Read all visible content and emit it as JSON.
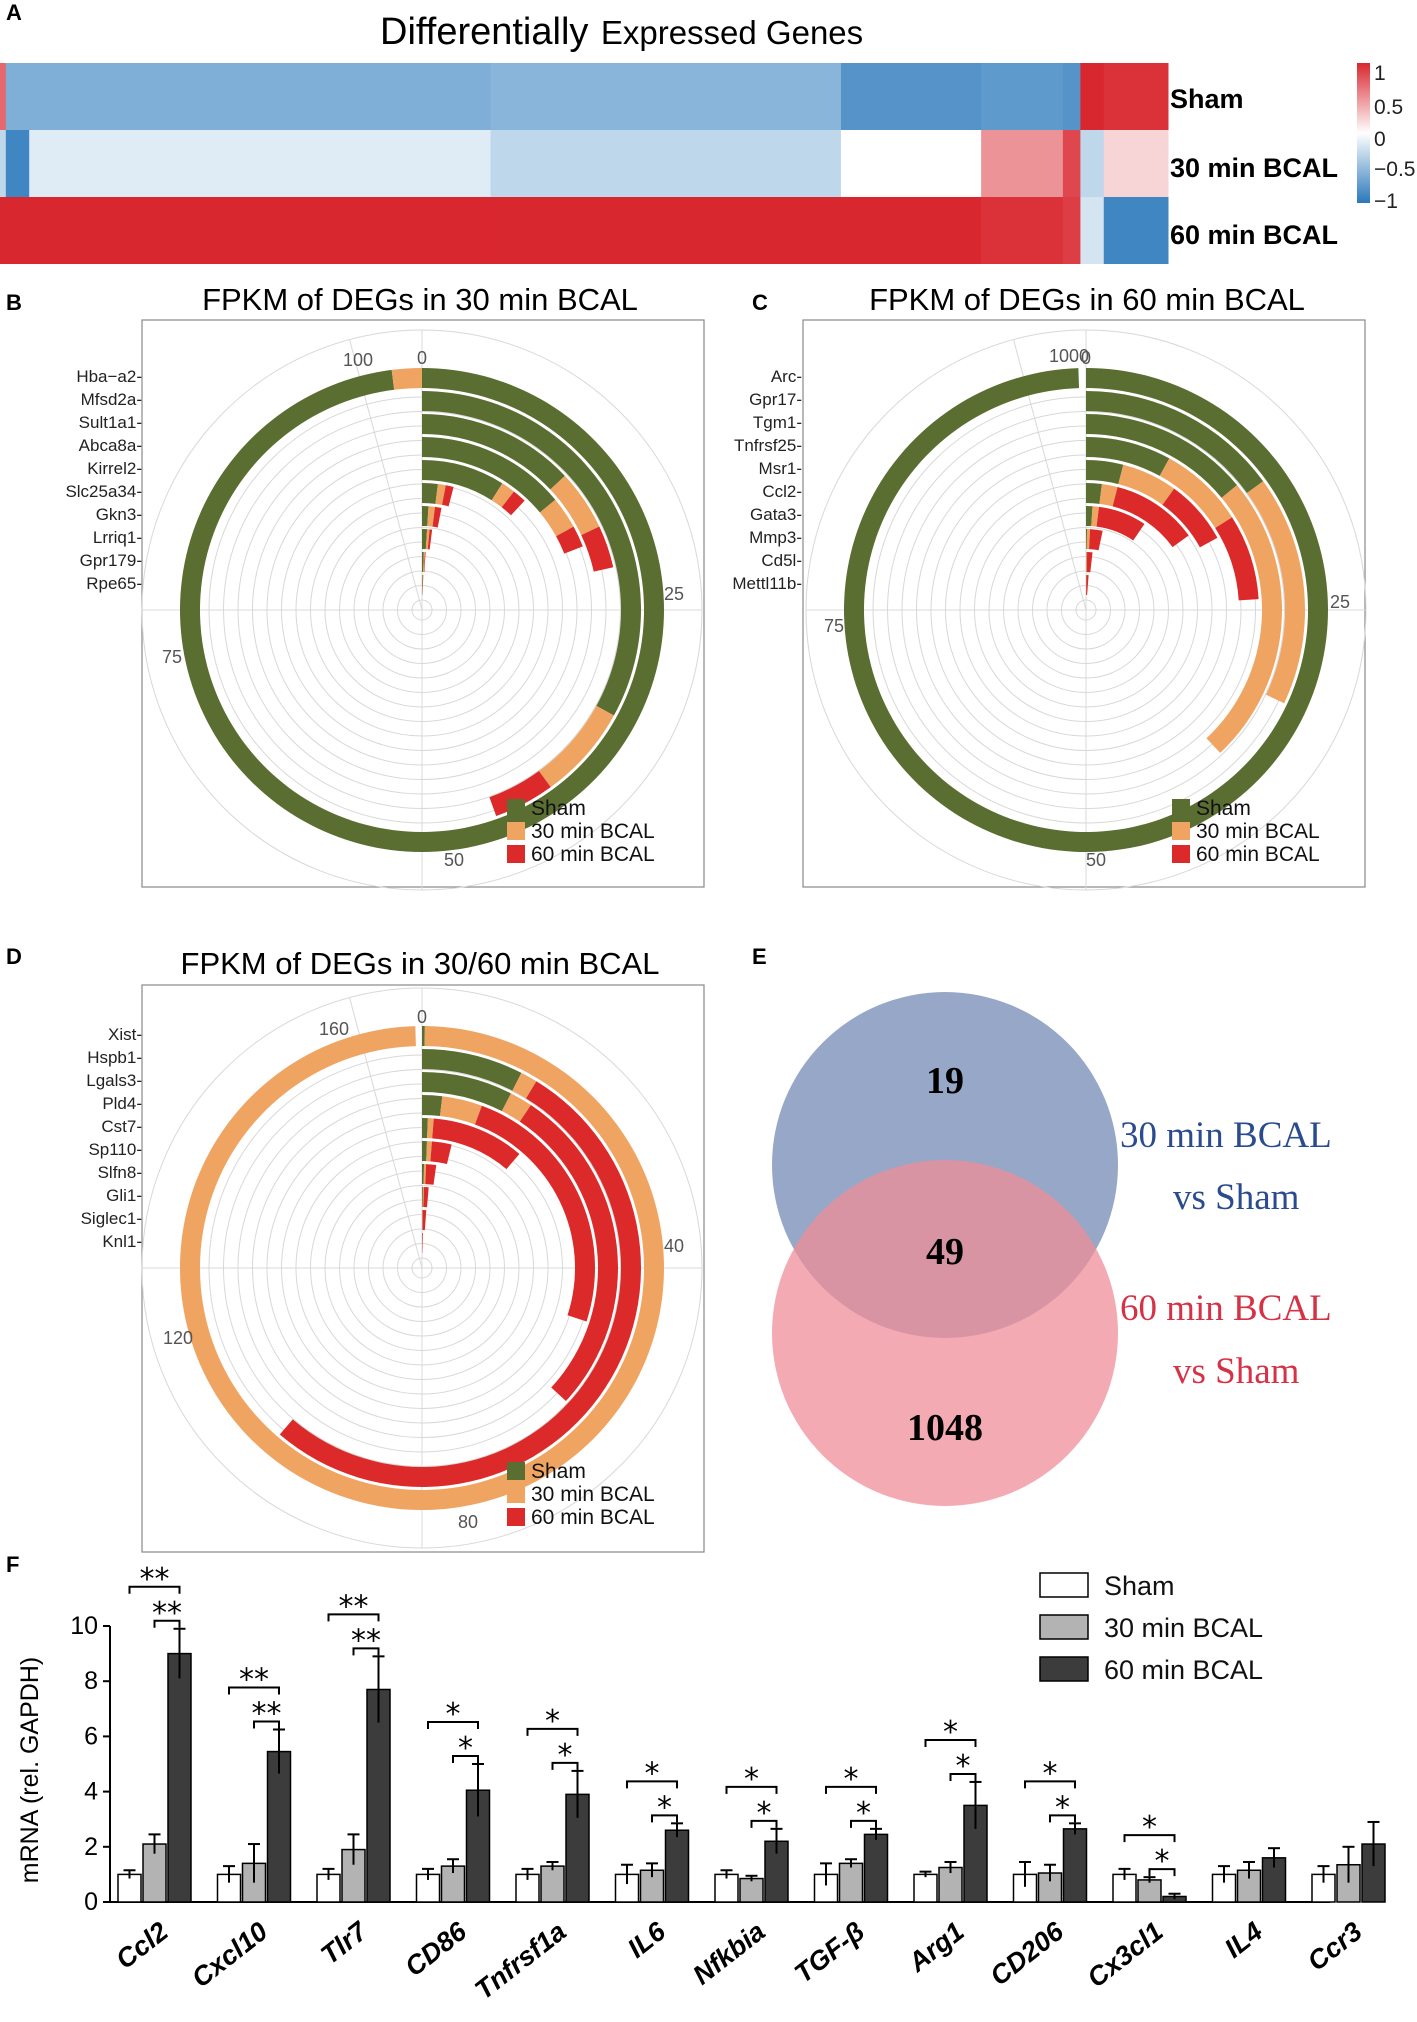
{
  "panel_letters": {
    "a": "A",
    "b": "B",
    "c": "C",
    "d": "D",
    "e": "E",
    "f": "F"
  },
  "colors": {
    "sham": "#5a6e31",
    "bcal30": "#f0a462",
    "bcal60": "#dc2a2a",
    "hm_red": "#d9272f",
    "hm_blue": "#2a78bb",
    "venn_blue": "#7389b5",
    "venn_red": "#ef8d98",
    "venn_blue_text": "#2a4b8d",
    "venn_red_text": "#d63245",
    "bar_sham": "#ffffff",
    "bar_30": "#b3b3b3",
    "bar_60": "#3c3c3c"
  },
  "chart_data": [
    {
      "type": "heatmap",
      "panel": "A",
      "title_big": "Differentially",
      "title_small": "Expressed Genes",
      "rows": [
        "Sham",
        "30 min BCAL",
        "60 min BCAL"
      ],
      "scale": {
        "min": -1,
        "max": 1,
        "ticks": [
          "1",
          "0.5",
          "0",
          "−0.5",
          "−1"
        ]
      },
      "segments": [
        {
          "from": 0.0,
          "to": 0.005,
          "values": [
            0.7,
            -0.3,
            1.0
          ]
        },
        {
          "from": 0.005,
          "to": 0.025,
          "values": [
            -0.6,
            -0.9,
            1.0
          ]
        },
        {
          "from": 0.025,
          "to": 0.42,
          "values": [
            -0.6,
            -0.15,
            1.0
          ]
        },
        {
          "from": 0.42,
          "to": 0.72,
          "values": [
            -0.55,
            -0.3,
            1.0
          ]
        },
        {
          "from": 0.72,
          "to": 0.84,
          "values": [
            -0.8,
            0.0,
            1.0
          ]
        },
        {
          "from": 0.84,
          "to": 0.91,
          "values": [
            -0.75,
            0.5,
            0.95
          ]
        },
        {
          "from": 0.91,
          "to": 0.925,
          "values": [
            -0.8,
            0.85,
            0.9
          ]
        },
        {
          "from": 0.925,
          "to": 0.945,
          "values": [
            1.0,
            -0.3,
            -0.2
          ]
        },
        {
          "from": 0.945,
          "to": 1.0,
          "values": [
            0.95,
            0.2,
            -0.9
          ]
        }
      ]
    },
    {
      "type": "radial-bar",
      "panel": "B",
      "title": "FPKM of DEGs in 30 min BCAL",
      "max": 100,
      "ticks": [
        0,
        25,
        50,
        75,
        100
      ],
      "genes": [
        "Hba−a2",
        "Mfsd2a",
        "Sult1a1",
        "Abca8a",
        "Kirrel2",
        "Slc25a34",
        "Gkn3",
        "Lrriq1",
        "Gpr179",
        "Rpe65"
      ],
      "series": [
        {
          "name": "Sham",
          "values": [
            98,
            33,
            13,
            14,
            9,
            2,
            1,
            1,
            0.5,
            0.3
          ]
        },
        {
          "name": "30 min BCAL",
          "values": [
            2,
            7,
            5,
            3,
            1.5,
            1,
            1,
            0.5,
            0.3,
            0.2
          ]
        },
        {
          "name": "60 min BCAL",
          "values": [
            0,
            4.5,
            3.5,
            2,
            1.5,
            1,
            1,
            0.5,
            0.2,
            0.1
          ]
        }
      ],
      "legend": [
        "Sham",
        "30 min BCAL",
        "60 min BCAL"
      ]
    },
    {
      "type": "radial-bar",
      "panel": "C",
      "title": "FPKM of DEGs in 60 min BCAL",
      "max": 1000,
      "ticks": [
        0,
        25,
        50,
        75,
        1000
      ],
      "tick_max_pos": 1000,
      "genes": [
        "Arc",
        "Gpr17",
        "Tgm1",
        "Tnfrsf25",
        "Msr1",
        "Ccl2",
        "Gata3",
        "Mmp3",
        "Cd5l",
        "Mettl11b"
      ],
      "series": [
        {
          "name": "Sham",
          "values": [
            995,
            150,
            140,
            80,
            40,
            20,
            10,
            2,
            1,
            1
          ]
        },
        {
          "name": "30 min BCAL",
          "values": [
            0,
            170,
            240,
            80,
            60,
            20,
            10,
            6,
            2,
            1
          ]
        },
        {
          "name": "60 min BCAL",
          "values": [
            0,
            0,
            0,
            80,
            70,
            110,
            75,
            25,
            15,
            10
          ]
        }
      ],
      "legend": [
        "Sham",
        "30 min BCAL",
        "60 min BCAL"
      ]
    },
    {
      "type": "radial-bar",
      "panel": "D",
      "title": "FPKM of DEGs in 30/60 min BCAL",
      "max": 160,
      "ticks": [
        0,
        40,
        80,
        120,
        160
      ],
      "genes": [
        "Xist",
        "Hspb1",
        "Lgals3",
        "Pld4",
        "Cst7",
        "Sp110",
        "Slfn8",
        "Gli1",
        "Siglec1",
        "Knl1"
      ],
      "series": [
        {
          "name": "Sham",
          "values": [
            0.3,
            12,
            12,
            3,
            1,
            1,
            0.5,
            0.3,
            0.2,
            0.1
          ]
        },
        {
          "name": "30 min BCAL",
          "values": [
            159,
            2,
            3,
            6,
            1,
            1,
            0.5,
            0.3,
            0.2,
            0.1
          ]
        },
        {
          "name": "60 min BCAL",
          "values": [
            0,
            84,
            44,
            39,
            16,
            4,
            2.5,
            1.5,
            1.5,
            0.5
          ]
        }
      ],
      "legend": [
        "Sham",
        "30 min BCAL",
        "60 min BCAL"
      ]
    },
    {
      "type": "venn",
      "panel": "E",
      "sets": [
        {
          "label_line1": "30 min BCAL",
          "label_line2": "vs Sham",
          "only": 19
        },
        {
          "label_line1": "60 min BCAL",
          "label_line2": "vs Sham",
          "only": 1048
        }
      ],
      "overlap": 49
    },
    {
      "type": "bar",
      "panel": "F",
      "ylabel": "mRNA  (rel. GAPDH)",
      "ylim": [
        0,
        10
      ],
      "yticks": [
        0,
        2,
        4,
        6,
        8,
        10
      ],
      "categories": [
        "Ccl2",
        "Cxcl10",
        "Tlr7",
        "CD86",
        "Tnfrsf1a",
        "IL6",
        "Nfkbia",
        "TGF-β",
        "Arg1",
        "CD206",
        "Cx3cl1",
        "IL4",
        "Ccr3"
      ],
      "series": [
        {
          "name": "Sham",
          "values": [
            1,
            1,
            1,
            1,
            1,
            1,
            1,
            1,
            1,
            1,
            1,
            1,
            1
          ],
          "errors": [
            0.15,
            0.3,
            0.2,
            0.2,
            0.2,
            0.35,
            0.15,
            0.4,
            0.1,
            0.45,
            0.2,
            0.3,
            0.3
          ]
        },
        {
          "name": "30 min BCAL",
          "values": [
            2.1,
            1.4,
            1.9,
            1.3,
            1.3,
            1.15,
            0.85,
            1.4,
            1.25,
            1.05,
            0.8,
            1.15,
            1.35
          ],
          "errors": [
            0.35,
            0.7,
            0.55,
            0.25,
            0.15,
            0.25,
            0.1,
            0.15,
            0.2,
            0.3,
            0.1,
            0.3,
            0.65
          ]
        },
        {
          "name": "60 min BCAL",
          "values": [
            9,
            5.45,
            7.7,
            4.05,
            3.9,
            2.6,
            2.2,
            2.45,
            3.5,
            2.65,
            0.2,
            1.6,
            2.1
          ],
          "errors": [
            0.9,
            0.8,
            1.2,
            0.95,
            0.85,
            0.25,
            0.45,
            0.2,
            0.85,
            0.2,
            0.1,
            0.35,
            0.8
          ]
        }
      ],
      "significance": [
        {
          "cat": 0,
          "upper": "**",
          "lower": "**"
        },
        {
          "cat": 1,
          "upper": "**",
          "lower": "**"
        },
        {
          "cat": 2,
          "upper": "**",
          "lower": "**"
        },
        {
          "cat": 3,
          "upper": "*",
          "lower": "*"
        },
        {
          "cat": 4,
          "upper": "*",
          "lower": "*"
        },
        {
          "cat": 5,
          "upper": "*",
          "lower": "*"
        },
        {
          "cat": 6,
          "upper": "*",
          "lower": "*"
        },
        {
          "cat": 7,
          "upper": "*",
          "lower": "*"
        },
        {
          "cat": 8,
          "upper": "*",
          "lower": "*"
        },
        {
          "cat": 9,
          "upper": "*",
          "lower": "*"
        },
        {
          "cat": 10,
          "upper": "*",
          "lower": "*"
        }
      ],
      "legend": [
        "Sham",
        "30 min BCAL",
        "60 min BCAL"
      ]
    }
  ]
}
